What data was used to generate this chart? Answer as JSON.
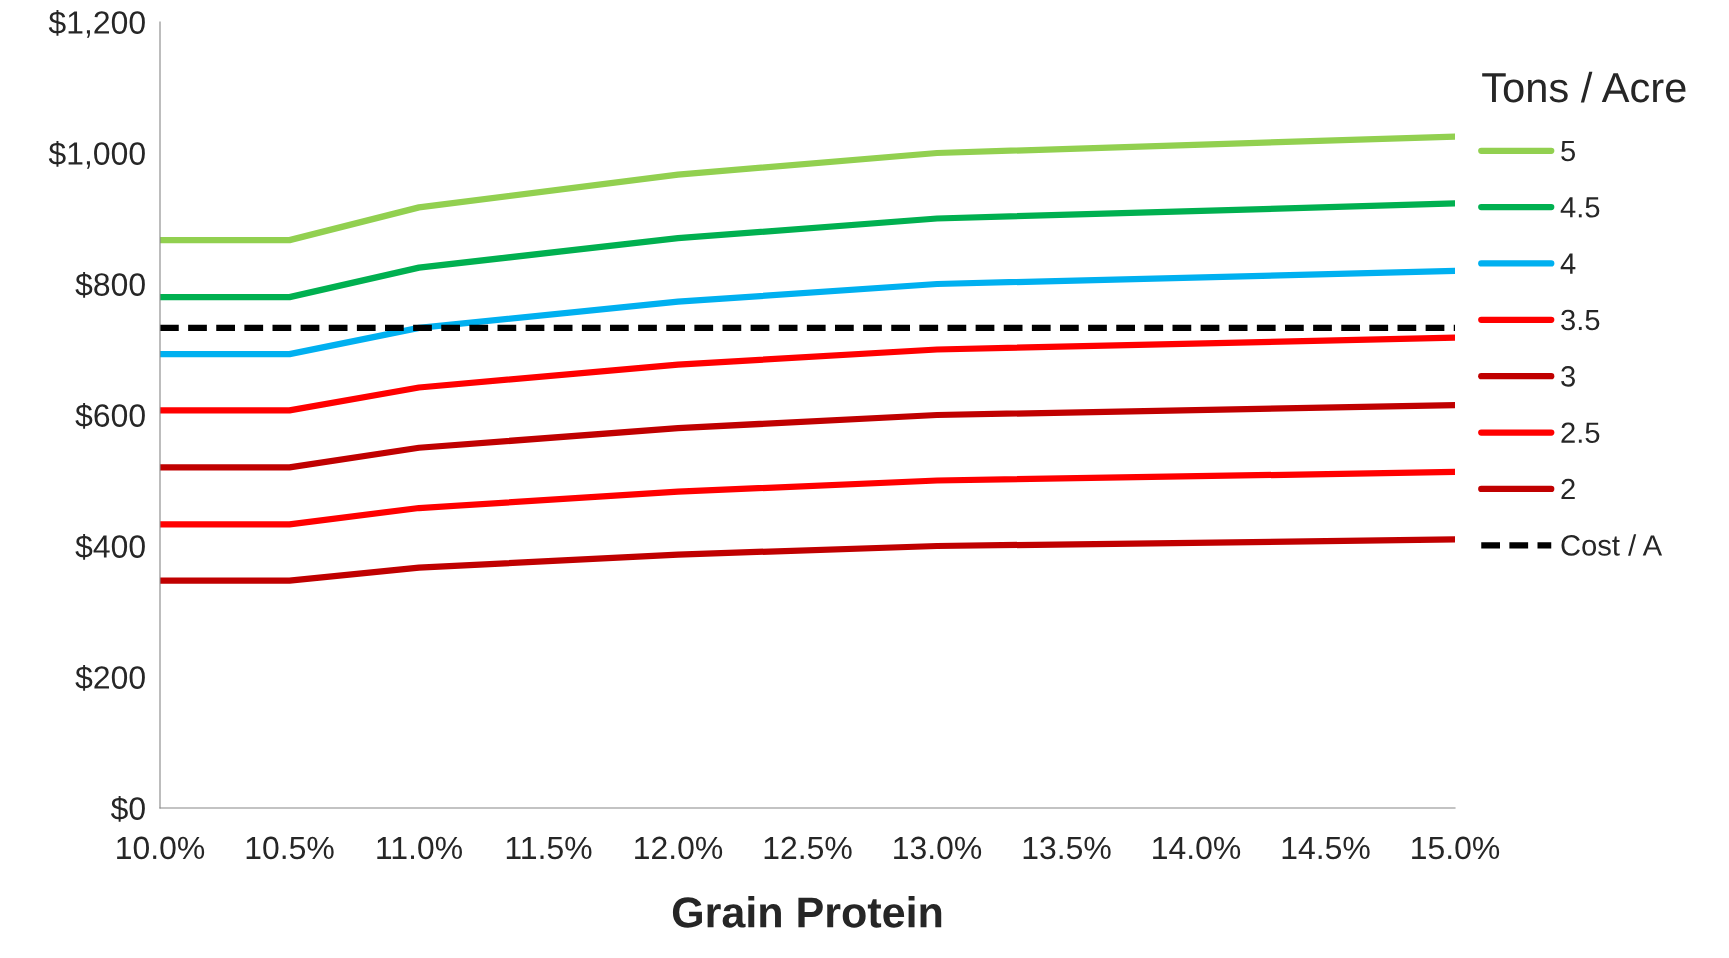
{
  "chart_data": {
    "type": "line",
    "xlabel": "Grain Protein",
    "legend_title": "Tons / Acre",
    "legend": "right",
    "grid": false,
    "marker": "none",
    "x": [
      10.0,
      10.5,
      11.0,
      12.0,
      13.0,
      15.0
    ],
    "xlim": [
      10.0,
      15.0
    ],
    "xticks": [
      {
        "value": 10.0,
        "label": "10.0%"
      },
      {
        "value": 10.5,
        "label": "10.5%"
      },
      {
        "value": 11.0,
        "label": "11.0%"
      },
      {
        "value": 11.5,
        "label": "11.5%"
      },
      {
        "value": 12.0,
        "label": "12.0%"
      },
      {
        "value": 12.5,
        "label": "12.5%"
      },
      {
        "value": 13.0,
        "label": "13.0%"
      },
      {
        "value": 13.5,
        "label": "13.5%"
      },
      {
        "value": 14.0,
        "label": "14.0%"
      },
      {
        "value": 14.5,
        "label": "14.5%"
      },
      {
        "value": 15.0,
        "label": "15.0%"
      }
    ],
    "ylim": [
      0,
      1200
    ],
    "yticks": [
      {
        "value": 0,
        "label": "$0"
      },
      {
        "value": 200,
        "label": "$200"
      },
      {
        "value": 400,
        "label": "$400"
      },
      {
        "value": 600,
        "label": "$600"
      },
      {
        "value": 800,
        "label": "$800"
      },
      {
        "value": 1000,
        "label": "$1,000"
      },
      {
        "value": 1200,
        "label": "$1,200"
      }
    ],
    "series": [
      {
        "name": "5",
        "color": "#92d050",
        "line_style": "solid",
        "values": [
          867,
          867,
          917,
          967,
          1000,
          1025
        ]
      },
      {
        "name": "4.5",
        "color": "#00b050",
        "line_style": "solid",
        "values": [
          780,
          780,
          825,
          870,
          900,
          923
        ]
      },
      {
        "name": "4",
        "color": "#00b0f0",
        "line_style": "solid",
        "values": [
          693,
          693,
          733,
          773,
          800,
          820
        ]
      },
      {
        "name": "3.5",
        "color": "#ff0000",
        "line_style": "solid",
        "values": [
          607,
          607,
          642,
          677,
          700,
          718
        ]
      },
      {
        "name": "3",
        "color": "#c00000",
        "line_style": "solid",
        "values": [
          520,
          520,
          550,
          580,
          600,
          615
        ]
      },
      {
        "name": "2.5",
        "color": "#ff0000",
        "line_style": "solid",
        "values": [
          433,
          433,
          458,
          483,
          500,
          513
        ]
      },
      {
        "name": "2",
        "color": "#c00000",
        "line_style": "solid",
        "values": [
          347,
          347,
          367,
          387,
          400,
          410
        ]
      },
      {
        "name": "Cost / A",
        "color": "#000000",
        "line_style": "dashed",
        "values": [
          733,
          733,
          733,
          733,
          733,
          733
        ]
      }
    ]
  }
}
